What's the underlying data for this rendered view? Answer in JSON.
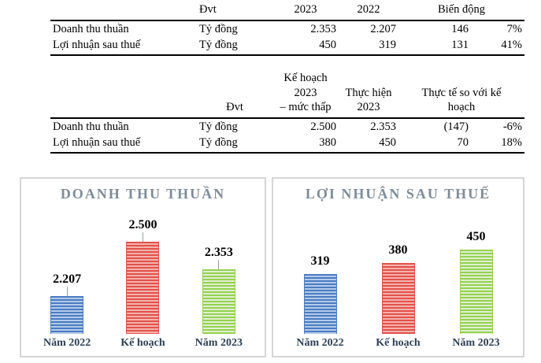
{
  "tables": [
    {
      "headers": {
        "unit": "Đvt",
        "y2023": "2023",
        "y2022": "2022",
        "change": "Biến động"
      },
      "rows": [
        {
          "label": "Doanh thu thuần",
          "unit": "Tỷ đồng",
          "v1": "2.353",
          "v2": "2.207",
          "change": "146",
          "pct": "7%"
        },
        {
          "label": "Lợi nhuận sau thuế",
          "unit": "Tỷ đồng",
          "v1": "450",
          "v2": "319",
          "change": "131",
          "pct": "41%"
        }
      ]
    },
    {
      "headers": {
        "unit": "Đvt",
        "plan_l1": "Kế hoạch 2023",
        "plan_l2": "– mức thấp",
        "actual_l1": "Thực hiện",
        "actual_l2": "2023",
        "vs_l1": "Thực tế so với kế",
        "vs_l2": "hoạch"
      },
      "rows": [
        {
          "label": "Doanh thu thuần",
          "unit": "Tỷ đồng",
          "v1": "2.500",
          "v2": "2.353",
          "change": "(147)",
          "pct": "-6%"
        },
        {
          "label": "Lợi nhuận sau thuế",
          "unit": "Tỷ đồng",
          "v1": "380",
          "v2": "450",
          "change": "70",
          "pct": "18%"
        }
      ]
    }
  ],
  "chart_data": [
    {
      "type": "bar",
      "title": "DOANH THU THUẦN",
      "categories": [
        "Năm 2022",
        "Kế hoạch",
        "Năm 2023"
      ],
      "values": [
        2207,
        2500,
        2353
      ],
      "value_labels": [
        "2.207",
        "2.500",
        "2.353"
      ],
      "colors": [
        "#4a7cc1",
        "#e0524c",
        "#94d153"
      ],
      "colors_light": [
        "#b3cbe9",
        "#f5b2ac",
        "#e0f0cd"
      ],
      "ylim": [
        2000,
        2600
      ],
      "legend": "none",
      "grid": false,
      "leader_lines": true
    },
    {
      "type": "bar",
      "title": "LỢI NHUẬN SAU THUẾ",
      "categories": [
        "Năm 2022",
        "Kế hoạch",
        "Năm 2023"
      ],
      "values": [
        319,
        380,
        450
      ],
      "value_labels": [
        "319",
        "380",
        "450"
      ],
      "colors": [
        "#4a7cc1",
        "#e0524c",
        "#94d153"
      ],
      "colors_light": [
        "#b3cbe9",
        "#f5b2ac",
        "#e0f0cd"
      ],
      "ylim": [
        0,
        500
      ],
      "legend": "none",
      "grid": false,
      "leader_lines": false
    }
  ],
  "style": {
    "title_color": "#7f8c99",
    "category_label_color": "#2e4156",
    "chart_border_color": "#d5d5d5",
    "table_rule_color": "#000000"
  }
}
